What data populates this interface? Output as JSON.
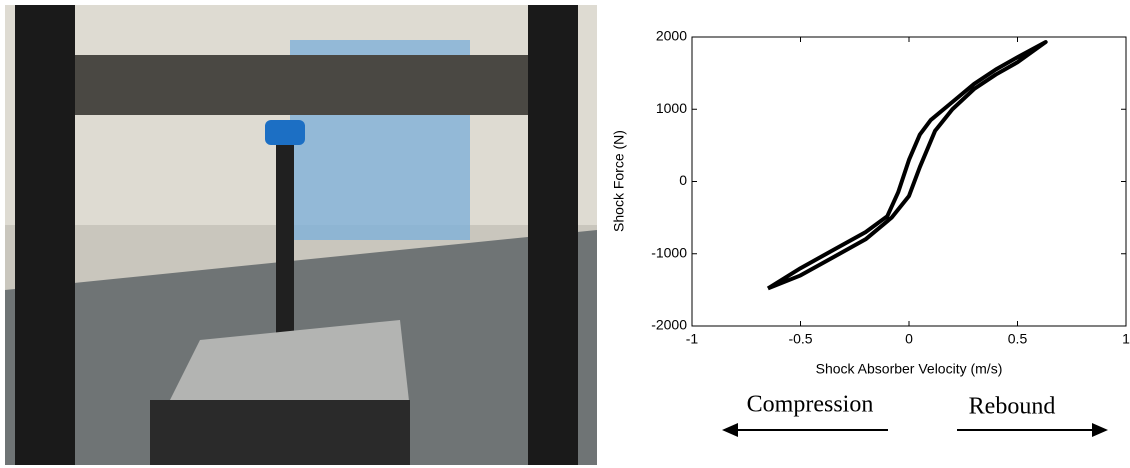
{
  "chart_data": {
    "type": "line",
    "x_label": "Shock Absorber Velocity (m/s)",
    "y_label": "Shock Force (N)",
    "annotations": [
      "Compression",
      "Rebound"
    ],
    "x": [
      -0.65,
      -0.5,
      -0.35,
      -0.2,
      -0.1,
      -0.05,
      0,
      0.05,
      0.1,
      0.2,
      0.3,
      0.4,
      0.5,
      0.63,
      0.5,
      0.4,
      0.3,
      0.2,
      0.12,
      0.05,
      0,
      -0.08,
      -0.2,
      -0.35,
      -0.5,
      -0.65
    ],
    "series": [
      {
        "color": "#000000",
        "values": [
          -1480,
          -1200,
          -950,
          -700,
          -480,
          -150,
          300,
          650,
          850,
          1100,
          1350,
          1550,
          1720,
          1930,
          1650,
          1480,
          1280,
          1000,
          700,
          200,
          -200,
          -500,
          -800,
          -1050,
          -1300,
          -1480
        ]
      }
    ],
    "xlim": [
      -1,
      1
    ],
    "ylim": [
      -2000,
      2000
    ],
    "xticks": [
      -1,
      -0.5,
      0,
      0.5,
      1
    ],
    "yticks": [
      -2000,
      -1000,
      0,
      1000,
      2000
    ],
    "grid": false
  }
}
